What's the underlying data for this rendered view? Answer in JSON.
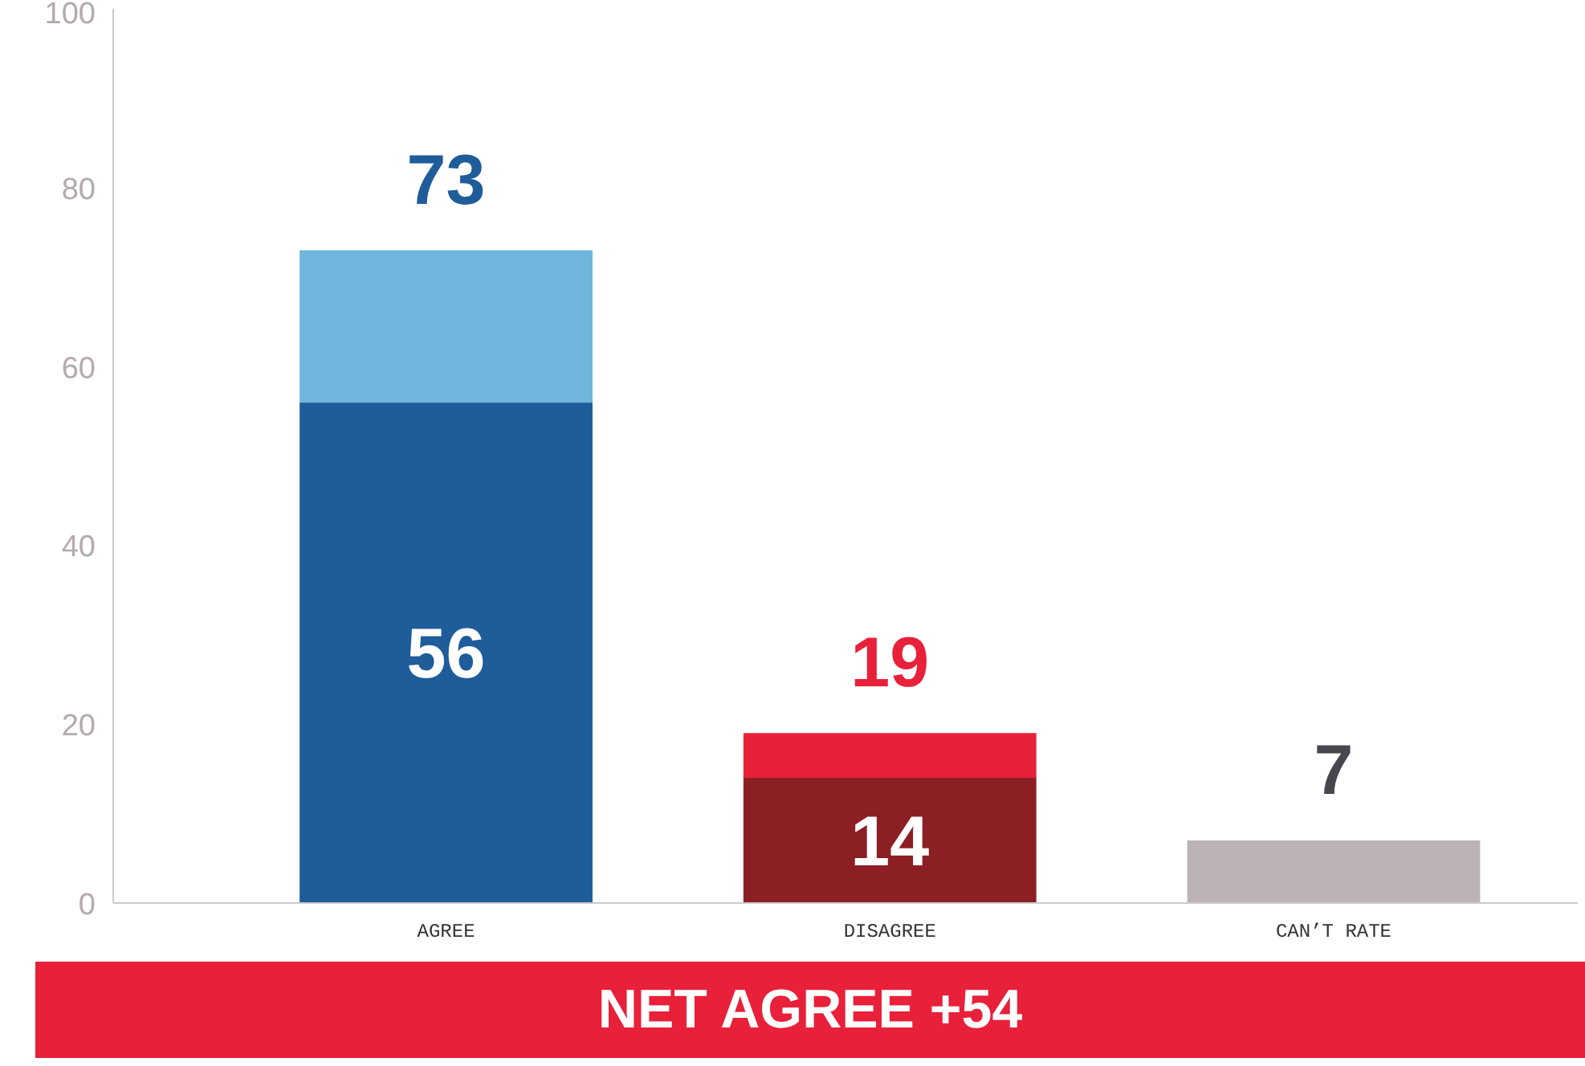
{
  "chart_data": {
    "type": "bar",
    "stacked": true,
    "categories": [
      "AGREE",
      "DISAGREE",
      "CAN’T RATE"
    ],
    "series": [
      {
        "colors": [
          "#1f5c9a",
          "#8b1f24",
          "#bdb2b4"
        ],
        "values": [
          56,
          14,
          7
        ],
        "value_labels": [
          "56",
          "14",
          null
        ]
      },
      {
        "colors": [
          "#6fb6dc",
          "#e8203a",
          "#bdb2b4"
        ],
        "values": [
          17,
          5,
          null
        ]
      }
    ],
    "totals": [
      "73",
      "19",
      "7"
    ],
    "ylim": [
      0,
      100
    ],
    "yticks": [
      0,
      20,
      40,
      60,
      80,
      100
    ],
    "grid": false,
    "annotations": [
      "NET AGREE +54"
    ]
  }
}
